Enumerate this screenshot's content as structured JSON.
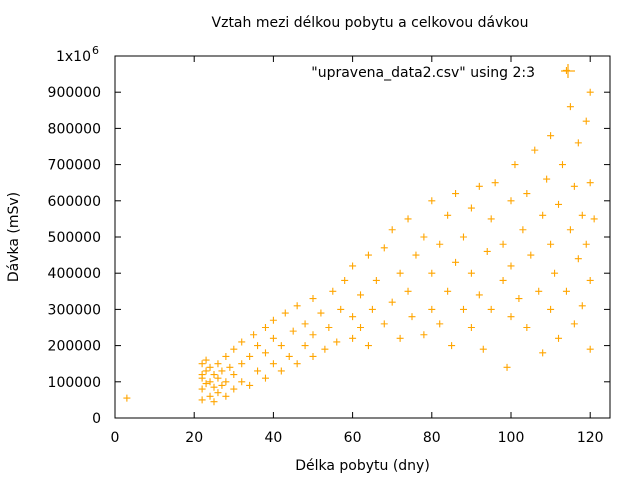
{
  "chart_data": {
    "type": "scatter",
    "title": "Vztah mezi délkou pobytu a celkovou dávkou",
    "xlabel": "Délka pobytu (dny)",
    "ylabel": "Dávka (mSv)",
    "xlim": [
      0,
      125
    ],
    "ylim": [
      0,
      1000000
    ],
    "x_ticks": [
      0,
      20,
      40,
      60,
      80,
      100,
      120
    ],
    "x_tick_labels": [
      "0",
      "20",
      "40",
      "60",
      "80",
      "100",
      "120"
    ],
    "y_ticks": [
      0,
      100000,
      200000,
      300000,
      400000,
      500000,
      600000,
      700000,
      800000,
      900000,
      1000000
    ],
    "y_tick_labels": [
      "0",
      "100000",
      "200000",
      "300000",
      "400000",
      "500000",
      "600000",
      "700000",
      "800000",
      "900000",
      "1x10"
    ],
    "y_top_exponent": "6",
    "grid": false,
    "legend": {
      "position": "top-right",
      "entry": "\"upravena_data2.csv\" using 2:3"
    },
    "marker": "+",
    "series": [
      {
        "name": "\"upravena_data2.csv\" using 2:3",
        "color": "#ffa500",
        "points": [
          [
            3,
            55000
          ],
          [
            22,
            50000
          ],
          [
            22,
            80000
          ],
          [
            22,
            110000
          ],
          [
            22,
            150000
          ],
          [
            22,
            120000
          ],
          [
            23,
            95000
          ],
          [
            23,
            130000
          ],
          [
            23,
            160000
          ],
          [
            24,
            60000
          ],
          [
            24,
            100000
          ],
          [
            24,
            140000
          ],
          [
            25,
            45000
          ],
          [
            25,
            85000
          ],
          [
            25,
            120000
          ],
          [
            26,
            70000
          ],
          [
            26,
            110000
          ],
          [
            26,
            150000
          ],
          [
            27,
            90000
          ],
          [
            27,
            130000
          ],
          [
            28,
            60000
          ],
          [
            28,
            100000
          ],
          [
            28,
            170000
          ],
          [
            29,
            140000
          ],
          [
            30,
            80000
          ],
          [
            30,
            120000
          ],
          [
            30,
            190000
          ],
          [
            32,
            100000
          ],
          [
            32,
            150000
          ],
          [
            32,
            210000
          ],
          [
            34,
            90000
          ],
          [
            34,
            170000
          ],
          [
            35,
            230000
          ],
          [
            36,
            130000
          ],
          [
            36,
            200000
          ],
          [
            38,
            110000
          ],
          [
            38,
            180000
          ],
          [
            38,
            250000
          ],
          [
            40,
            150000
          ],
          [
            40,
            220000
          ],
          [
            40,
            270000
          ],
          [
            42,
            130000
          ],
          [
            42,
            200000
          ],
          [
            43,
            290000
          ],
          [
            44,
            170000
          ],
          [
            45,
            240000
          ],
          [
            46,
            150000
          ],
          [
            46,
            310000
          ],
          [
            48,
            200000
          ],
          [
            48,
            260000
          ],
          [
            50,
            170000
          ],
          [
            50,
            230000
          ],
          [
            50,
            330000
          ],
          [
            52,
            290000
          ],
          [
            53,
            190000
          ],
          [
            54,
            250000
          ],
          [
            55,
            350000
          ],
          [
            56,
            210000
          ],
          [
            57,
            300000
          ],
          [
            58,
            380000
          ],
          [
            60,
            220000
          ],
          [
            60,
            280000
          ],
          [
            60,
            420000
          ],
          [
            62,
            250000
          ],
          [
            62,
            340000
          ],
          [
            64,
            200000
          ],
          [
            64,
            450000
          ],
          [
            65,
            300000
          ],
          [
            66,
            380000
          ],
          [
            68,
            260000
          ],
          [
            68,
            470000
          ],
          [
            70,
            320000
          ],
          [
            70,
            520000
          ],
          [
            72,
            220000
          ],
          [
            72,
            400000
          ],
          [
            74,
            350000
          ],
          [
            74,
            550000
          ],
          [
            75,
            280000
          ],
          [
            76,
            450000
          ],
          [
            78,
            230000
          ],
          [
            78,
            500000
          ],
          [
            80,
            300000
          ],
          [
            80,
            400000
          ],
          [
            80,
            600000
          ],
          [
            82,
            260000
          ],
          [
            82,
            480000
          ],
          [
            84,
            350000
          ],
          [
            84,
            560000
          ],
          [
            85,
            200000
          ],
          [
            86,
            430000
          ],
          [
            86,
            620000
          ],
          [
            88,
            300000
          ],
          [
            88,
            500000
          ],
          [
            90,
            250000
          ],
          [
            90,
            400000
          ],
          [
            90,
            580000
          ],
          [
            92,
            340000
          ],
          [
            92,
            640000
          ],
          [
            93,
            190000
          ],
          [
            94,
            460000
          ],
          [
            95,
            300000
          ],
          [
            95,
            550000
          ],
          [
            96,
            650000
          ],
          [
            98,
            380000
          ],
          [
            98,
            480000
          ],
          [
            99,
            140000
          ],
          [
            100,
            280000
          ],
          [
            100,
            420000
          ],
          [
            100,
            600000
          ],
          [
            101,
            700000
          ],
          [
            102,
            330000
          ],
          [
            103,
            520000
          ],
          [
            104,
            250000
          ],
          [
            104,
            620000
          ],
          [
            105,
            450000
          ],
          [
            106,
            740000
          ],
          [
            107,
            350000
          ],
          [
            108,
            560000
          ],
          [
            108,
            180000
          ],
          [
            109,
            660000
          ],
          [
            110,
            300000
          ],
          [
            110,
            480000
          ],
          [
            110,
            780000
          ],
          [
            111,
            400000
          ],
          [
            112,
            590000
          ],
          [
            112,
            220000
          ],
          [
            113,
            700000
          ],
          [
            114,
            960000
          ],
          [
            114,
            350000
          ],
          [
            115,
            520000
          ],
          [
            115,
            860000
          ],
          [
            116,
            260000
          ],
          [
            116,
            640000
          ],
          [
            117,
            440000
          ],
          [
            117,
            760000
          ],
          [
            118,
            560000
          ],
          [
            118,
            310000
          ],
          [
            119,
            820000
          ],
          [
            119,
            480000
          ],
          [
            120,
            190000
          ],
          [
            120,
            650000
          ],
          [
            120,
            900000
          ],
          [
            120,
            380000
          ],
          [
            121,
            550000
          ]
        ]
      }
    ]
  }
}
